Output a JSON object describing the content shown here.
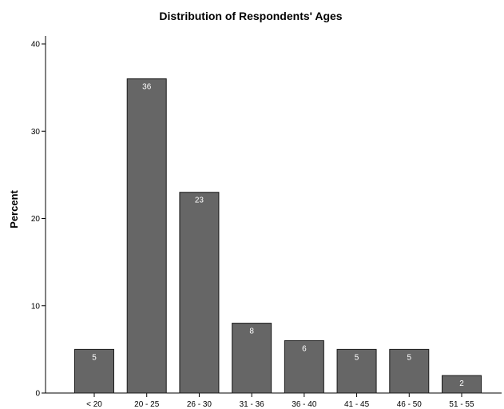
{
  "chart_data": {
    "type": "bar",
    "title": "Distribution of Respondents' Ages",
    "xlabel": "",
    "ylabel": "Percent",
    "categories": [
      "< 20",
      "20 - 25",
      "26 - 30",
      "31 - 36",
      "36 - 40",
      "41 - 45",
      "46 - 50",
      "51 - 55"
    ],
    "values": [
      5,
      36,
      23,
      8,
      6,
      5,
      5,
      2
    ],
    "data_labels": [
      "5",
      "36",
      "23",
      "8",
      "6",
      "5",
      "5",
      "2"
    ],
    "ylim": [
      0,
      40
    ],
    "y_ticks": [
      0,
      10,
      20,
      30,
      40
    ],
    "grid": false,
    "legend": "none",
    "colors": {
      "bar_fill": "#666666",
      "bar_stroke": "#1a1a1a",
      "axis": "#000000",
      "data_label": "#ffffff"
    }
  }
}
